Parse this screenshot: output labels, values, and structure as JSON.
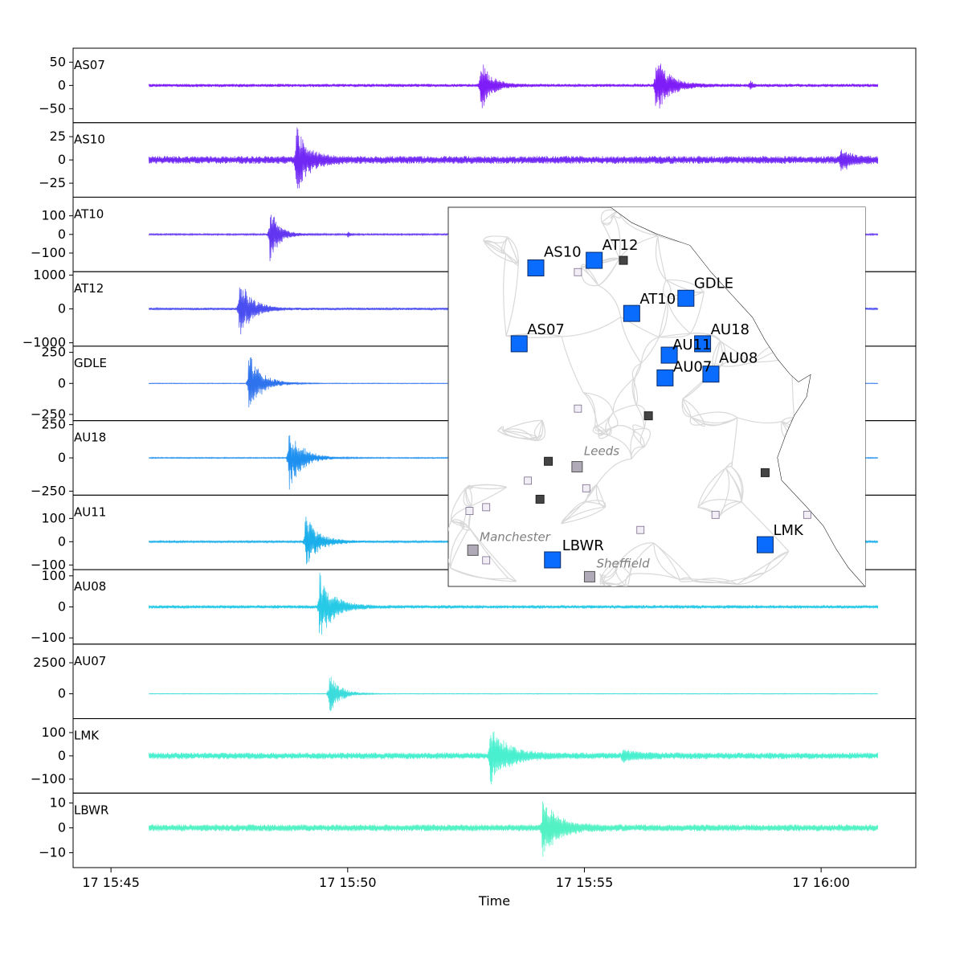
{
  "chart_data": {
    "type": "line",
    "xlabel": "Time",
    "x_ticks": [
      "17 15:45",
      "17 15:50",
      "17 15:55",
      "17 16:00"
    ],
    "x_range_minutes": [
      44.2,
      62.0
    ],
    "record_span_minutes": [
      45.8,
      61.2
    ],
    "series": [
      {
        "name": "AS07",
        "color": "#7f1df8",
        "ylim": [
          -80,
          80
        ],
        "yticks": [
          50,
          0,
          -50
        ],
        "noise": 2.5,
        "events": [
          {
            "t": 52.8,
            "amp": 62,
            "dur": 0.45
          },
          {
            "t": 56.5,
            "amp": 70,
            "dur": 0.6
          },
          {
            "t": 58.5,
            "amp": 12,
            "dur": 0.1
          }
        ]
      },
      {
        "name": "AS10",
        "color": "#7028f5",
        "ylim": [
          -40,
          40
        ],
        "yticks": [
          25,
          0,
          -25
        ],
        "noise": 3,
        "events": [
          {
            "t": 48.9,
            "amp": 38,
            "dur": 0.55
          },
          {
            "t": 60.4,
            "amp": 12,
            "dur": 0.5
          }
        ]
      },
      {
        "name": "AT10",
        "color": "#6236f1",
        "ylim": [
          -200,
          200
        ],
        "yticks": [
          100,
          0,
          -100
        ],
        "noise": 3,
        "events": [
          {
            "t": 48.35,
            "amp": 170,
            "dur": 0.4
          },
          {
            "t": 50.0,
            "amp": 18,
            "dur": 0.1
          }
        ]
      },
      {
        "name": "AT12",
        "color": "#4a4ef0",
        "ylim": [
          -1100,
          1100
        ],
        "yticks": [
          1000,
          0,
          -1000
        ],
        "noise": 25,
        "events": [
          {
            "t": 47.7,
            "amp": 1000,
            "dur": 0.55
          }
        ]
      },
      {
        "name": "GDLE",
        "color": "#2e72ee",
        "ylim": [
          -300,
          300
        ],
        "yticks": [
          250,
          0,
          -250
        ],
        "noise": 2,
        "events": [
          {
            "t": 47.9,
            "amp": 260,
            "dur": 0.6
          }
        ]
      },
      {
        "name": "AU18",
        "color": "#1e90f0",
        "ylim": [
          -280,
          280
        ],
        "yticks": [
          250,
          0,
          -250
        ],
        "noise": 3,
        "events": [
          {
            "t": 48.75,
            "amp": 260,
            "dur": 0.6
          }
        ]
      },
      {
        "name": "AU11",
        "color": "#1aaeea",
        "ylim": [
          -120,
          200
        ],
        "yticks": [
          100,
          0,
          -100
        ],
        "noise": 3,
        "events": [
          {
            "t": 49.1,
            "amp": 120,
            "dur": 0.6
          }
        ]
      },
      {
        "name": "AU08",
        "color": "#26c9e6",
        "ylim": [
          -120,
          120
        ],
        "yticks": [
          100,
          0,
          -100
        ],
        "noise": 4,
        "events": [
          {
            "t": 49.4,
            "amp": 115,
            "dur": 0.6
          }
        ]
      },
      {
        "name": "AU07",
        "color": "#3cdcdc",
        "ylim": [
          -2000,
          4000
        ],
        "yticks": [
          2500,
          0
        ],
        "noise": 20,
        "events": [
          {
            "t": 49.6,
            "amp": 1700,
            "dur": 0.5
          }
        ]
      },
      {
        "name": "LMK",
        "color": "#48f0d0",
        "ylim": [
          -160,
          160
        ],
        "yticks": [
          100,
          0,
          -100
        ],
        "noise": 10,
        "events": [
          {
            "t": 53.0,
            "amp": 125,
            "dur": 0.8
          },
          {
            "t": 55.8,
            "amp": 20,
            "dur": 0.8
          }
        ]
      },
      {
        "name": "LBWR",
        "color": "#52f2c4",
        "ylim": [
          -16,
          14
        ],
        "yticks": [
          10,
          0,
          -10
        ],
        "noise": 1,
        "events": [
          {
            "t": 54.1,
            "amp": 12,
            "dur": 0.7
          }
        ]
      }
    ],
    "inset_map": {
      "stations": [
        {
          "name": "AS10",
          "x": 0.21,
          "y": 0.16
        },
        {
          "name": "AT12",
          "x": 0.35,
          "y": 0.14
        },
        {
          "name": "AT10",
          "x": 0.44,
          "y": 0.28
        },
        {
          "name": "GDLE",
          "x": 0.57,
          "y": 0.24
        },
        {
          "name": "AS07",
          "x": 0.17,
          "y": 0.36
        },
        {
          "name": "AU11",
          "x": 0.53,
          "y": 0.39
        },
        {
          "name": "AU18",
          "x": 0.61,
          "y": 0.36
        },
        {
          "name": "AU07",
          "x": 0.52,
          "y": 0.45
        },
        {
          "name": "AU08",
          "x": 0.63,
          "y": 0.44
        },
        {
          "name": "LMK",
          "x": 0.76,
          "y": 0.89
        },
        {
          "name": "LBWR",
          "x": 0.25,
          "y": 0.93
        }
      ],
      "cities": [
        {
          "name": "Leeds",
          "x": 0.31,
          "y": 0.66
        },
        {
          "name": "Manchester",
          "x": 0.06,
          "y": 0.88
        },
        {
          "name": "Sheffield",
          "x": 0.34,
          "y": 0.95
        }
      ]
    }
  }
}
